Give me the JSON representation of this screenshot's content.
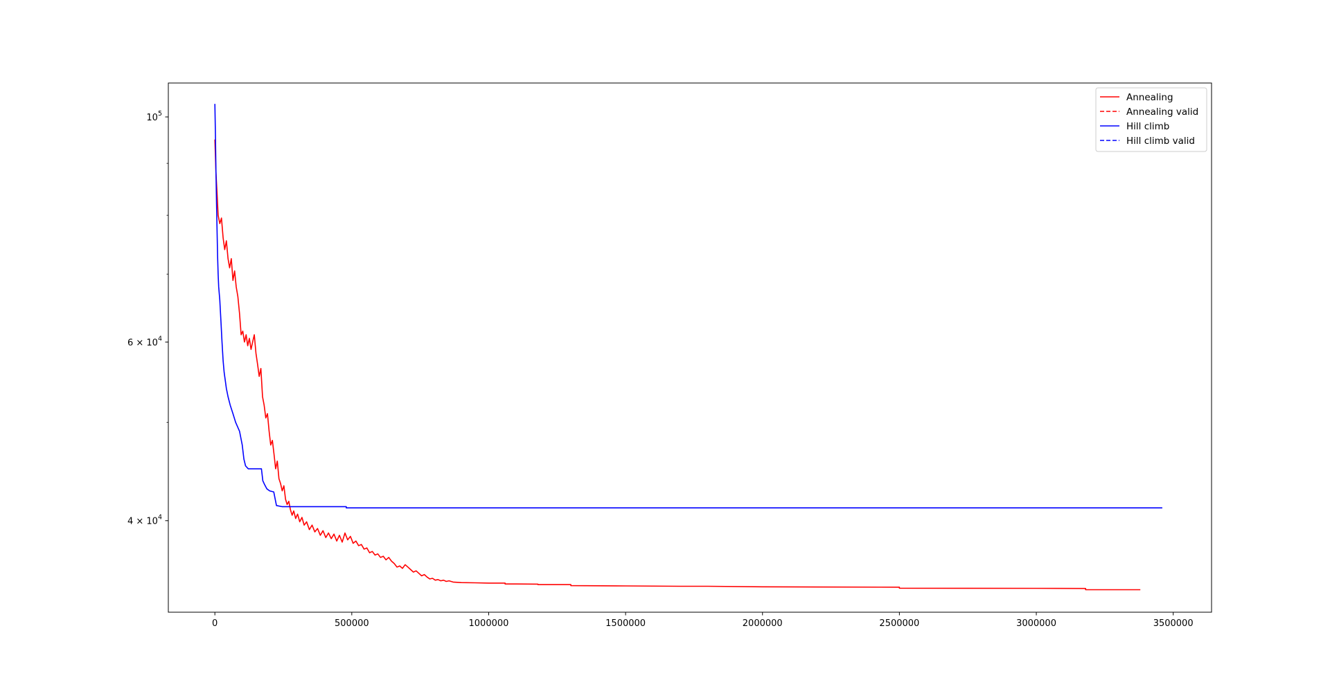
{
  "chart_data": {
    "type": "line",
    "title": "",
    "xlabel": "",
    "ylabel": "",
    "yscale": "log",
    "xlim": [
      -170000,
      3640000
    ],
    "ylim": [
      32500,
      108000
    ],
    "grid": false,
    "legend_position": "top-right",
    "x_ticks": [
      {
        "value": 0,
        "label": "0"
      },
      {
        "value": 500000,
        "label": "500000"
      },
      {
        "value": 1000000,
        "label": "1000000"
      },
      {
        "value": 1500000,
        "label": "1500000"
      },
      {
        "value": 2000000,
        "label": "2000000"
      },
      {
        "value": 2500000,
        "label": "2500000"
      },
      {
        "value": 3000000,
        "label": "3000000"
      },
      {
        "value": 3500000,
        "label": "3500000"
      }
    ],
    "y_major_ticks": [
      {
        "value": 40000,
        "mantissa": "4 × 10",
        "exp": "4"
      },
      {
        "value": 60000,
        "mantissa": "6 × 10",
        "exp": "4"
      },
      {
        "value": 100000,
        "mantissa": "10",
        "exp": "5"
      }
    ],
    "y_minor_ticks": [
      50000,
      70000,
      80000,
      90000
    ],
    "series": [
      {
        "name": "Annealing",
        "color": "#ff0000",
        "dash": "solid",
        "points": [
          [
            0,
            95000
          ],
          [
            4000,
            88000
          ],
          [
            8000,
            84000
          ],
          [
            12000,
            80000
          ],
          [
            18000,
            78500
          ],
          [
            24000,
            79500
          ],
          [
            30000,
            76000
          ],
          [
            36000,
            74000
          ],
          [
            42000,
            75500
          ],
          [
            48000,
            72500
          ],
          [
            54000,
            71000
          ],
          [
            60000,
            72500
          ],
          [
            66000,
            69000
          ],
          [
            72000,
            70500
          ],
          [
            78000,
            68000
          ],
          [
            84000,
            66500
          ],
          [
            90000,
            64000
          ],
          [
            96000,
            61000
          ],
          [
            102000,
            61500
          ],
          [
            108000,
            60000
          ],
          [
            114000,
            61000
          ],
          [
            120000,
            59500
          ],
          [
            126000,
            60500
          ],
          [
            132000,
            59000
          ],
          [
            138000,
            60000
          ],
          [
            144000,
            61000
          ],
          [
            150000,
            58500
          ],
          [
            156000,
            57000
          ],
          [
            162000,
            55500
          ],
          [
            168000,
            56500
          ],
          [
            174000,
            53000
          ],
          [
            180000,
            52000
          ],
          [
            186000,
            50500
          ],
          [
            192000,
            51000
          ],
          [
            198000,
            49000
          ],
          [
            204000,
            47500
          ],
          [
            210000,
            48000
          ],
          [
            216000,
            46500
          ],
          [
            222000,
            45000
          ],
          [
            228000,
            45800
          ],
          [
            234000,
            44000
          ],
          [
            240000,
            43500
          ],
          [
            246000,
            42800
          ],
          [
            252000,
            43300
          ],
          [
            258000,
            42000
          ],
          [
            264000,
            41500
          ],
          [
            270000,
            41800
          ],
          [
            276000,
            41000
          ],
          [
            282000,
            40500
          ],
          [
            288000,
            40900
          ],
          [
            295000,
            40200
          ],
          [
            302000,
            40600
          ],
          [
            310000,
            39900
          ],
          [
            318000,
            40300
          ],
          [
            326000,
            39600
          ],
          [
            335000,
            39900
          ],
          [
            345000,
            39200
          ],
          [
            355000,
            39600
          ],
          [
            365000,
            39000
          ],
          [
            375000,
            39300
          ],
          [
            385000,
            38700
          ],
          [
            395000,
            39100
          ],
          [
            405000,
            38500
          ],
          [
            415000,
            38900
          ],
          [
            425000,
            38400
          ],
          [
            435000,
            38800
          ],
          [
            445000,
            38200
          ],
          [
            455000,
            38700
          ],
          [
            465000,
            38100
          ],
          [
            475000,
            38900
          ],
          [
            485000,
            38300
          ],
          [
            495000,
            38600
          ],
          [
            505000,
            38000
          ],
          [
            515000,
            38200
          ],
          [
            525000,
            37800
          ],
          [
            535000,
            37900
          ],
          [
            545000,
            37500
          ],
          [
            555000,
            37600
          ],
          [
            565000,
            37200
          ],
          [
            575000,
            37300
          ],
          [
            585000,
            37000
          ],
          [
            595000,
            37100
          ],
          [
            605000,
            36800
          ],
          [
            615000,
            36900
          ],
          [
            625000,
            36600
          ],
          [
            635000,
            36800
          ],
          [
            645000,
            36500
          ],
          [
            655000,
            36300
          ],
          [
            665000,
            36000
          ],
          [
            675000,
            36100
          ],
          [
            685000,
            35900
          ],
          [
            695000,
            36200
          ],
          [
            705000,
            36000
          ],
          [
            715000,
            35800
          ],
          [
            725000,
            35600
          ],
          [
            735000,
            35700
          ],
          [
            745000,
            35500
          ],
          [
            755000,
            35300
          ],
          [
            765000,
            35400
          ],
          [
            775000,
            35200
          ],
          [
            785000,
            35050
          ],
          [
            795000,
            35100
          ],
          [
            805000,
            34950
          ],
          [
            815000,
            35000
          ],
          [
            825000,
            34900
          ],
          [
            835000,
            34950
          ],
          [
            845000,
            34850
          ],
          [
            855000,
            34900
          ],
          [
            870000,
            34800
          ],
          [
            885000,
            34780
          ],
          [
            900000,
            34760
          ],
          [
            950000,
            34740
          ],
          [
            1000000,
            34720
          ],
          [
            1060000,
            34720
          ],
          [
            1060000,
            34650
          ],
          [
            1100000,
            34650
          ],
          [
            1180000,
            34640
          ],
          [
            1180000,
            34600
          ],
          [
            1300000,
            34600
          ],
          [
            1300000,
            34520
          ],
          [
            1500000,
            34500
          ],
          [
            1700000,
            34470
          ],
          [
            1800000,
            34470
          ],
          [
            2000000,
            34430
          ],
          [
            2200000,
            34410
          ],
          [
            2500000,
            34400
          ],
          [
            2500000,
            34320
          ],
          [
            3000000,
            34310
          ],
          [
            3180000,
            34300
          ],
          [
            3180000,
            34200
          ],
          [
            3380000,
            34200
          ]
        ]
      },
      {
        "name": "Annealing valid",
        "color": "#ff0000",
        "dash": "dashed",
        "points": []
      },
      {
        "name": "Hill climb",
        "color": "#0000ff",
        "dash": "solid",
        "points": [
          [
            0,
            103000
          ],
          [
            2000,
            96000
          ],
          [
            4000,
            88000
          ],
          [
            6000,
            82000
          ],
          [
            8000,
            77000
          ],
          [
            10000,
            73000
          ],
          [
            12000,
            70000
          ],
          [
            14000,
            68000
          ],
          [
            18000,
            66000
          ],
          [
            22000,
            63000
          ],
          [
            26000,
            60000
          ],
          [
            30000,
            57500
          ],
          [
            34000,
            56000
          ],
          [
            38000,
            55000
          ],
          [
            42000,
            54000
          ],
          [
            48000,
            53000
          ],
          [
            56000,
            52000
          ],
          [
            66000,
            51000
          ],
          [
            76000,
            50000
          ],
          [
            90000,
            49000
          ],
          [
            100000,
            47500
          ],
          [
            106000,
            46000
          ],
          [
            112000,
            45300
          ],
          [
            122000,
            45000
          ],
          [
            150000,
            45000
          ],
          [
            170000,
            45000
          ],
          [
            175000,
            43800
          ],
          [
            182000,
            43400
          ],
          [
            190000,
            43000
          ],
          [
            200000,
            42800
          ],
          [
            215000,
            42700
          ],
          [
            225000,
            41400
          ],
          [
            245000,
            41300
          ],
          [
            300000,
            41300
          ],
          [
            400000,
            41300
          ],
          [
            480000,
            41300
          ],
          [
            480000,
            41180
          ],
          [
            1000000,
            41180
          ],
          [
            2000000,
            41180
          ],
          [
            3000000,
            41180
          ],
          [
            3460000,
            41180
          ]
        ]
      },
      {
        "name": "Hill climb valid",
        "color": "#0000ff",
        "dash": "dashed",
        "points": []
      }
    ]
  }
}
